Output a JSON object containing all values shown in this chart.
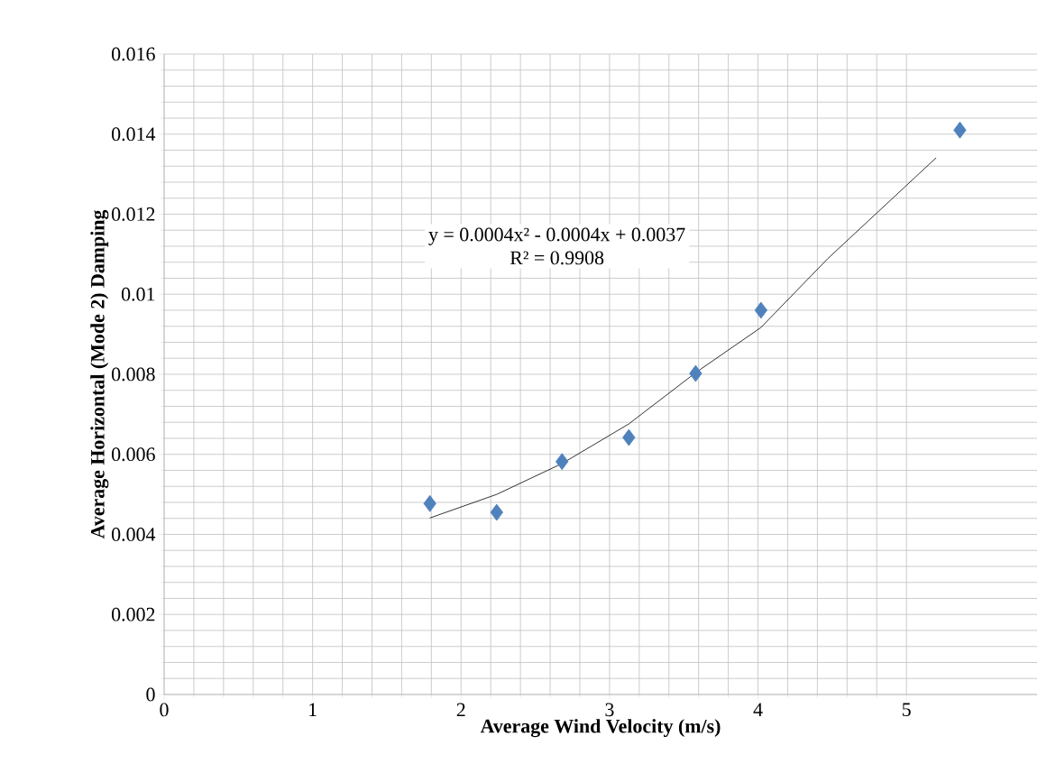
{
  "chart_data": {
    "type": "scatter",
    "xlabel": "Average Wind Velocity (m/s)",
    "ylabel": "Average Horizontal (Mode 2) Damping",
    "annotations": [
      "y = 0.0004x² - 0.0004x + 0.0037",
      "R² = 0.9908"
    ],
    "series": [
      {
        "color": "#4f81bd",
        "marker": "diamond",
        "x": [
          1.79,
          2.24,
          2.68,
          3.13,
          3.58,
          4.02,
          5.36
        ],
        "values": [
          0.00477,
          0.00455,
          0.00582,
          0.00642,
          0.00802,
          0.0096,
          0.0141
        ]
      },
      {
        "type": "line",
        "color": "#000000",
        "marker": "none",
        "x": [
          1.79,
          2.24,
          2.68,
          3.13,
          3.58,
          4.02,
          4.47,
          5.2
        ],
        "values": [
          0.00441,
          0.005,
          0.00577,
          0.00676,
          0.00804,
          0.00917,
          0.01089,
          0.01341
        ]
      }
    ],
    "xlim": [
      0,
      5.88
    ],
    "ylim": [
      0,
      0.016
    ],
    "xticks": [
      0,
      1,
      2,
      3,
      4,
      5
    ],
    "yticks": [
      0,
      0.002,
      0.004,
      0.006,
      0.008,
      {
        "value": 0.01,
        "label": "0.01"
      },
      0.012,
      0.014,
      0.016
    ],
    "grid": true
  }
}
